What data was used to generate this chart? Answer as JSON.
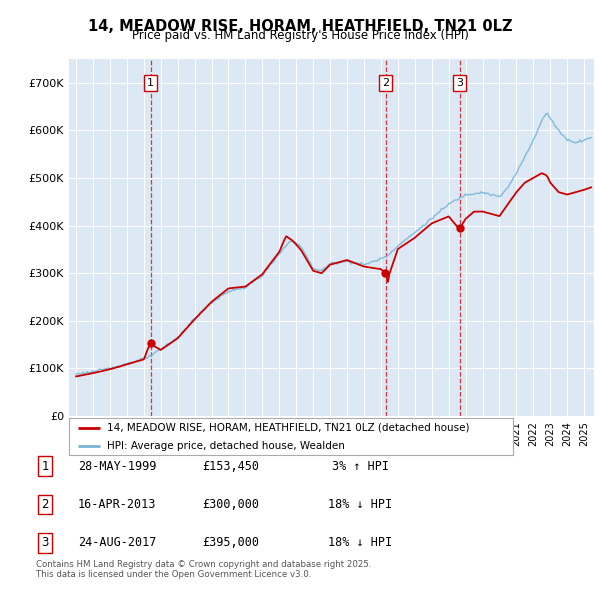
{
  "title": "14, MEADOW RISE, HORAM, HEATHFIELD, TN21 0LZ",
  "subtitle": "Price paid vs. HM Land Registry's House Price Index (HPI)",
  "background_color": "#dce9f5",
  "yticks": [
    0,
    100000,
    200000,
    300000,
    400000,
    500000,
    600000,
    700000
  ],
  "ytick_labels": [
    "£0",
    "£100K",
    "£200K",
    "£300K",
    "£400K",
    "£500K",
    "£600K",
    "£700K"
  ],
  "ylim": [
    0,
    750000
  ],
  "hpi_color": "#7ab3d4",
  "price_color": "#cc0000",
  "dashed_line_color": "#cc0000",
  "sale_dates": [
    "1999-05-28",
    "2013-04-16",
    "2017-08-24"
  ],
  "sale_prices": [
    153450,
    300000,
    395000
  ],
  "sale_labels": [
    "1",
    "2",
    "3"
  ],
  "legend_label_price": "14, MEADOW RISE, HORAM, HEATHFIELD, TN21 0LZ (detached house)",
  "legend_label_hpi": "HPI: Average price, detached house, Wealden",
  "table_rows": [
    [
      "1",
      "28-MAY-1999",
      "£153,450",
      "3% ↑ HPI"
    ],
    [
      "2",
      "16-APR-2013",
      "£300,000",
      "18% ↓ HPI"
    ],
    [
      "3",
      "24-AUG-2017",
      "£395,000",
      "18% ↓ HPI"
    ]
  ],
  "footer": "Contains HM Land Registry data © Crown copyright and database right 2025.\nThis data is licensed under the Open Government Licence v3.0.",
  "hpi_keypoints": {
    "1995.0": 88000,
    "1996.0": 93000,
    "1997.0": 100000,
    "1998.0": 110000,
    "1999.0": 120000,
    "1999.5": 128000,
    "2000.0": 140000,
    "2001.0": 165000,
    "2002.0": 205000,
    "2003.0": 238000,
    "2004.0": 262000,
    "2005.0": 270000,
    "2006.0": 295000,
    "2007.0": 340000,
    "2007.7": 370000,
    "2008.3": 355000,
    "2009.0": 310000,
    "2009.5": 305000,
    "2010.0": 320000,
    "2011.0": 325000,
    "2012.0": 318000,
    "2013.0": 330000,
    "2013.5": 340000,
    "2014.0": 358000,
    "2015.0": 385000,
    "2016.0": 415000,
    "2017.0": 445000,
    "2018.0": 465000,
    "2019.0": 470000,
    "2020.0": 460000,
    "2020.5": 480000,
    "2021.0": 510000,
    "2021.5": 545000,
    "2022.0": 580000,
    "2022.5": 620000,
    "2022.8": 638000,
    "2023.0": 625000,
    "2023.5": 600000,
    "2024.0": 580000,
    "2024.5": 575000,
    "2025.0": 580000,
    "2025.4": 585000
  },
  "price_keypoints": {
    "1995.0": 83000,
    "1996.0": 90000,
    "1997.0": 98000,
    "1998.0": 108000,
    "1999.0": 118000,
    "1999.4": 153450,
    "1999.5": 148000,
    "2000.0": 138000,
    "2001.0": 163000,
    "2002.0": 203000,
    "2003.0": 240000,
    "2004.0": 268000,
    "2005.0": 272000,
    "2006.0": 298000,
    "2007.0": 345000,
    "2007.4": 378000,
    "2007.8": 368000,
    "2008.3": 348000,
    "2009.0": 305000,
    "2009.5": 300000,
    "2010.0": 318000,
    "2011.0": 328000,
    "2012.0": 315000,
    "2013.0": 310000,
    "2013.3": 300000,
    "2013.4": 280000,
    "2013.5": 300000,
    "2014.0": 352000,
    "2015.0": 375000,
    "2016.0": 405000,
    "2017.0": 420000,
    "2017.6": 395000,
    "2017.65": 395000,
    "2018.0": 415000,
    "2018.5": 430000,
    "2019.0": 430000,
    "2020.0": 420000,
    "2020.5": 445000,
    "2021.0": 470000,
    "2021.5": 490000,
    "2022.0": 500000,
    "2022.5": 510000,
    "2022.8": 505000,
    "2023.0": 490000,
    "2023.5": 470000,
    "2024.0": 465000,
    "2024.5": 470000,
    "2025.0": 475000,
    "2025.4": 480000
  }
}
